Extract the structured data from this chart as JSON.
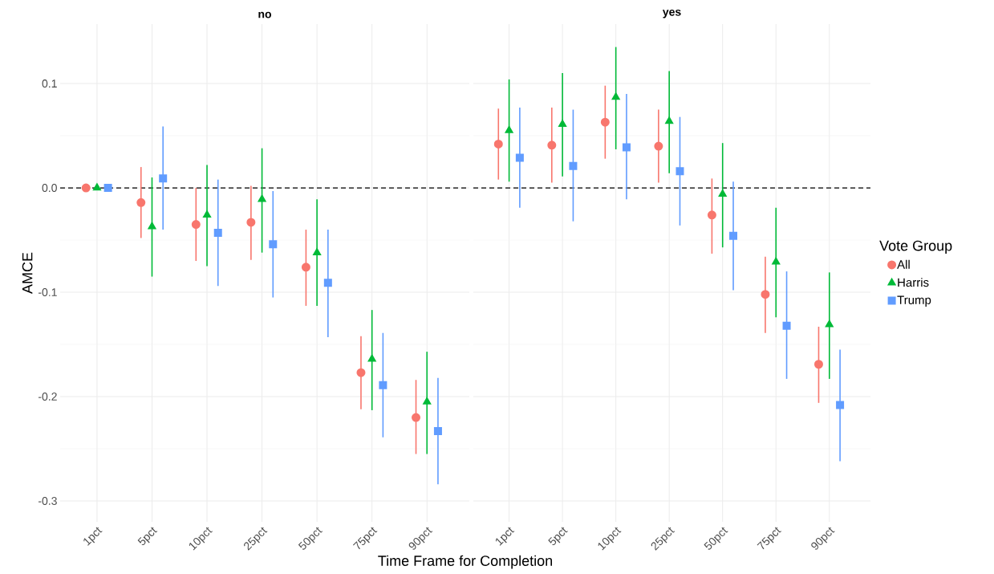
{
  "chart_data": [
    {
      "type": "scatter",
      "title": "no",
      "xlabel": "Time Frame for Completion",
      "ylabel": "AMCE",
      "categories": [
        "1pct",
        "5pct",
        "10pct",
        "25pct",
        "50pct",
        "75pct",
        "90pct"
      ],
      "ylim": [
        -0.32,
        0.157
      ],
      "yticks": [
        -0.3,
        -0.2,
        -0.1,
        {
          "value": 0,
          "label": "0.0"
        },
        0.1
      ],
      "grid": true,
      "ref_lines": [
        {
          "axis": "y",
          "value": 0,
          "line_style": "dashed",
          "color": "#000000"
        }
      ],
      "series": [
        {
          "color": "#f8766d",
          "marker": "circle",
          "values": [
            0,
            -0.014,
            -0.035,
            -0.033,
            -0.076,
            -0.177,
            -0.22
          ],
          "errors": [
            null,
            [
              -0.048,
              0.02
            ],
            [
              -0.07,
              0.0
            ],
            [
              -0.069,
              0.002
            ],
            [
              -0.113,
              -0.04
            ],
            [
              -0.212,
              -0.142
            ],
            [
              -0.255,
              -0.184
            ]
          ]
        },
        {
          "color": "#00ba38",
          "marker": "triangle",
          "values": [
            0,
            -0.037,
            -0.026,
            -0.011,
            -0.062,
            -0.164,
            -0.205
          ],
          "errors": [
            null,
            [
              -0.085,
              0.01
            ],
            [
              -0.075,
              0.022
            ],
            [
              -0.062,
              0.038
            ],
            [
              -0.113,
              -0.011
            ],
            [
              -0.213,
              -0.117
            ],
            [
              -0.255,
              -0.157
            ]
          ]
        },
        {
          "color": "#619cff",
          "marker": "square",
          "values": [
            0,
            0.009,
            -0.043,
            -0.054,
            -0.091,
            -0.189,
            -0.233
          ],
          "errors": [
            null,
            [
              -0.04,
              0.059
            ],
            [
              -0.094,
              0.008
            ],
            [
              -0.105,
              -0.003
            ],
            [
              -0.143,
              -0.04
            ],
            [
              -0.239,
              -0.139
            ],
            [
              -0.284,
              -0.182
            ]
          ]
        }
      ]
    },
    {
      "type": "scatter",
      "title": "yes",
      "legend_title": "Vote Group",
      "legend": "right",
      "tick_labels": "x",
      "categories": [
        "1pct",
        "5pct",
        "10pct",
        "25pct",
        "50pct",
        "75pct",
        "90pct"
      ],
      "ylim": [
        -0.32,
        0.157
      ],
      "yticks": [
        -0.3,
        -0.2,
        -0.1,
        0,
        0.1
      ],
      "grid": true,
      "ref_lines": [
        {
          "axis": "y",
          "value": 0,
          "line_style": "dashed",
          "color": "#000000"
        }
      ],
      "series": [
        {
          "name": "All",
          "color": "#f8766d",
          "marker": "circle",
          "values": [
            0.042,
            0.041,
            0.063,
            0.04,
            -0.026,
            -0.102,
            -0.169
          ],
          "errors": [
            [
              0.008,
              0.076
            ],
            [
              0.005,
              0.077
            ],
            [
              0.028,
              0.098
            ],
            [
              0.005,
              0.075
            ],
            [
              -0.063,
              0.009
            ],
            [
              -0.139,
              -0.066
            ],
            [
              -0.206,
              -0.133
            ]
          ]
        },
        {
          "name": "Harris",
          "color": "#00ba38",
          "marker": "triangle",
          "values": [
            0.055,
            0.061,
            0.087,
            0.064,
            -0.006,
            -0.071,
            -0.131
          ],
          "errors": [
            [
              0.006,
              0.104
            ],
            [
              0.011,
              0.11
            ],
            [
              0.037,
              0.135
            ],
            [
              0.014,
              0.112
            ],
            [
              -0.057,
              0.043
            ],
            [
              -0.124,
              -0.019
            ],
            [
              -0.183,
              -0.081
            ]
          ]
        },
        {
          "name": "Trump",
          "color": "#619cff",
          "marker": "square",
          "values": [
            0.029,
            0.021,
            0.039,
            0.016,
            -0.046,
            -0.132,
            -0.208
          ],
          "errors": [
            [
              -0.019,
              0.077
            ],
            [
              -0.032,
              0.075
            ],
            [
              -0.011,
              0.09
            ],
            [
              -0.036,
              0.068
            ],
            [
              -0.098,
              0.006
            ],
            [
              -0.183,
              -0.08
            ],
            [
              -0.262,
              -0.155
            ]
          ]
        }
      ]
    }
  ]
}
